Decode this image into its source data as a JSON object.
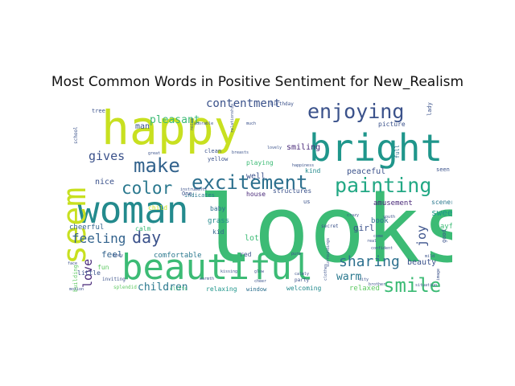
{
  "chart_data": {
    "type": "wordcloud",
    "title": "Most Common Words in Positive Sentiment for New_Realism",
    "colormap": "viridis",
    "background": "#ffffff",
    "words": [
      {
        "text": "looks",
        "weight": 100,
        "color": "#3cbb75"
      },
      {
        "text": "happy",
        "weight": 72,
        "color": "#c8e020"
      },
      {
        "text": "bright",
        "weight": 58,
        "color": "#1f968b"
      },
      {
        "text": "woman",
        "weight": 56,
        "color": "#238a8d"
      },
      {
        "text": "beautiful",
        "weight": 55,
        "color": "#3cbb75"
      },
      {
        "text": "seem",
        "weight": 52,
        "color": "#c8e020"
      },
      {
        "text": "excitement",
        "weight": 36,
        "color": "#2d708e"
      },
      {
        "text": "enjoying",
        "weight": 32,
        "color": "#3b528b"
      },
      {
        "text": "painting",
        "weight": 32,
        "color": "#22a884"
      },
      {
        "text": "smile",
        "weight": 30,
        "color": "#3cbb75"
      },
      {
        "text": "make",
        "weight": 28,
        "color": "#33638d"
      },
      {
        "text": "color",
        "weight": 26,
        "color": "#2a788e"
      },
      {
        "text": "day",
        "weight": 25,
        "color": "#3b528b"
      },
      {
        "text": "sharing",
        "weight": 24,
        "color": "#2d708e"
      },
      {
        "text": "feeling",
        "weight": 21,
        "color": "#33638d"
      },
      {
        "text": "gives",
        "weight": 20,
        "color": "#3b528b"
      },
      {
        "text": "contentment",
        "weight": 18,
        "color": "#3b528b"
      },
      {
        "text": "love",
        "weight": 20,
        "color": "#482878"
      },
      {
        "text": "children",
        "weight": 17,
        "color": "#2a788e"
      },
      {
        "text": "joy",
        "weight": 18,
        "color": "#3b528b"
      },
      {
        "text": "warm",
        "weight": 16,
        "color": "#2a788e"
      },
      {
        "text": "pleasant",
        "weight": 15,
        "color": "#3cbb75"
      },
      {
        "text": "feel",
        "weight": 14,
        "color": "#33638d"
      },
      {
        "text": "beauty",
        "weight": 13,
        "color": "#3b528b"
      },
      {
        "text": "sweet",
        "weight": 12,
        "color": "#1f968b"
      },
      {
        "text": "smiling",
        "weight": 12,
        "color": "#482878"
      },
      {
        "text": "peaceful",
        "weight": 12,
        "color": "#3b528b"
      },
      {
        "text": "girl",
        "weight": 12,
        "color": "#3b528b"
      },
      {
        "text": "amusement",
        "weight": 11,
        "color": "#482878"
      },
      {
        "text": "playful",
        "weight": 11,
        "color": "#3cbb75"
      },
      {
        "text": "cheerful",
        "weight": 11,
        "color": "#33638d"
      },
      {
        "text": "book",
        "weight": 11,
        "color": "#2d708e"
      },
      {
        "text": "relaxed",
        "weight": 11,
        "color": "#5ec962"
      },
      {
        "text": "kind",
        "weight": 10,
        "color": "#238a8d"
      },
      {
        "text": "scenery",
        "weight": 10,
        "color": "#2a788e"
      },
      {
        "text": "playing",
        "weight": 10,
        "color": "#3cbb75"
      },
      {
        "text": "well",
        "weight": 10,
        "color": "#3b528b"
      },
      {
        "text": "nice",
        "weight": 10,
        "color": "#3b528b"
      },
      {
        "text": "comfortable",
        "weight": 10,
        "color": "#2a788e"
      },
      {
        "text": "man",
        "weight": 10,
        "color": "#3b528b"
      },
      {
        "text": "grass",
        "weight": 10,
        "color": "#238a8d"
      },
      {
        "text": "lot",
        "weight": 10,
        "color": "#3cbb75"
      },
      {
        "text": "little",
        "weight": 9,
        "color": "#3b528b"
      },
      {
        "text": "red",
        "weight": 9,
        "color": "#3b528b"
      },
      {
        "text": "fun",
        "weight": 9,
        "color": "#5ec962"
      },
      {
        "text": "kid",
        "weight": 9,
        "color": "#33638d"
      },
      {
        "text": "calm",
        "weight": 9,
        "color": "#3cbb75"
      },
      {
        "text": "baby",
        "weight": 9,
        "color": "#2d708e"
      },
      {
        "text": "relaxing",
        "weight": 9,
        "color": "#1f968b"
      },
      {
        "text": "welcoming",
        "weight": 9,
        "color": "#238a8d"
      },
      {
        "text": "picture",
        "weight": 8,
        "color": "#3b528b"
      },
      {
        "text": "house",
        "weight": 8,
        "color": "#482878"
      },
      {
        "text": "window",
        "weight": 8,
        "color": "#2d708e"
      },
      {
        "text": "structures",
        "weight": 8,
        "color": "#3b528b"
      },
      {
        "text": "child",
        "weight": 8,
        "color": "#c8e020"
      },
      {
        "text": "building",
        "weight": 8,
        "color": "#5ec962"
      },
      {
        "text": "indicates",
        "weight": 8,
        "color": "#2a788e"
      },
      {
        "text": "clean",
        "weight": 7,
        "color": "#3b528b"
      },
      {
        "text": "yellow",
        "weight": 7,
        "color": "#3b528b"
      },
      {
        "text": "tree",
        "weight": 7,
        "color": "#3b528b"
      },
      {
        "text": "seen",
        "weight": 7,
        "color": "#3b528b"
      },
      {
        "text": "good",
        "weight": 7,
        "color": "#3b528b"
      },
      {
        "text": "full",
        "weight": 7,
        "color": "#2d708e"
      },
      {
        "text": "lady",
        "weight": 7,
        "color": "#3b528b"
      },
      {
        "text": "One",
        "weight": 7,
        "color": "#3b528b"
      },
      {
        "text": "us",
        "weight": 7,
        "color": "#3b528b"
      },
      {
        "text": "party",
        "weight": 6,
        "color": "#3b528b"
      },
      {
        "text": "inviting",
        "weight": 6,
        "color": "#3b528b"
      },
      {
        "text": "splendid",
        "weight": 6,
        "color": "#5ec962"
      },
      {
        "text": "cliffs",
        "weight": 6,
        "color": "#3cbb75"
      },
      {
        "text": "secret",
        "weight": 6,
        "color": "#3b528b"
      },
      {
        "text": "birthday",
        "weight": 6,
        "color": "#3b528b"
      },
      {
        "text": "image",
        "weight": 5,
        "color": "#3b528b"
      },
      {
        "text": "situation",
        "weight": 5,
        "color": "#3b528b"
      },
      {
        "text": "clothes",
        "weight": 5,
        "color": "#3b528b"
      },
      {
        "text": "confident",
        "weight": 5,
        "color": "#3b528b"
      },
      {
        "text": "happiness",
        "weight": 5,
        "color": "#3b528b"
      },
      {
        "text": "motion",
        "weight": 5,
        "color": "#3b528b"
      },
      {
        "text": "face",
        "weight": 5,
        "color": "#3b528b"
      },
      {
        "text": "come",
        "weight": 5,
        "color": "#3b528b"
      },
      {
        "text": "crazy",
        "weight": 5,
        "color": "#3b528b"
      },
      {
        "text": "youth",
        "weight": 5,
        "color": "#3b528b"
      },
      {
        "text": "surroundings",
        "weight": 5,
        "color": "#3b528b"
      },
      {
        "text": "adorable",
        "weight": 5,
        "color": "#3b528b"
      },
      {
        "text": "instruments",
        "weight": 5,
        "color": "#3b528b"
      },
      {
        "text": "lovely",
        "weight": 5,
        "color": "#3b528b"
      },
      {
        "text": "real",
        "weight": 5,
        "color": "#3b528b"
      },
      {
        "text": "mild",
        "weight": 5,
        "color": "#3b528b"
      },
      {
        "text": "city",
        "weight": 5,
        "color": "#3b528b"
      },
      {
        "text": "brother",
        "weight": 5,
        "color": "#3b528b"
      },
      {
        "text": "pure",
        "weight": 5,
        "color": "#3b528b"
      },
      {
        "text": "warmth",
        "weight": 5,
        "color": "#3b528b"
      },
      {
        "text": "much",
        "weight": 5,
        "color": "#3b528b"
      },
      {
        "text": "great",
        "weight": 5,
        "color": "#3b528b"
      },
      {
        "text": "kissing",
        "weight": 5,
        "color": "#3b528b"
      },
      {
        "text": "body",
        "weight": 5,
        "color": "#3b528b"
      },
      {
        "text": "cheer",
        "weight": 5,
        "color": "#3b528b"
      },
      {
        "text": "breasts",
        "weight": 5,
        "color": "#3b528b"
      },
      {
        "text": "noise",
        "weight": 5,
        "color": "#3b528b"
      },
      {
        "text": "relationship",
        "weight": 5,
        "color": "#3b528b"
      },
      {
        "text": "glow",
        "weight": 5,
        "color": "#3b528b"
      },
      {
        "text": "calmly",
        "weight": 5,
        "color": "#3b528b"
      },
      {
        "text": "school",
        "weight": 5,
        "color": "#3b528b"
      }
    ]
  }
}
